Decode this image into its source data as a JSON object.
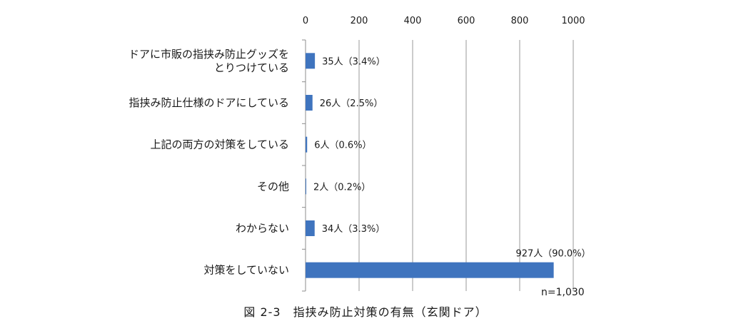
{
  "chart_data": {
    "type": "bar",
    "orientation": "horizontal",
    "categories": [
      [
        "ドアに市販の指挟み防止グッズを",
        "とりつけている"
      ],
      [
        "指挟み防止仕様のドアにしている"
      ],
      [
        "上記の両方の対策をしている"
      ],
      [
        "その他"
      ],
      [
        "わからない"
      ],
      [
        "対策をしていない"
      ]
    ],
    "values": [
      35,
      26,
      6,
      2,
      34,
      927
    ],
    "data_labels": [
      "35人（3.4%）",
      "26人（2.5%）",
      "6人（0.6%）",
      "2人（0.2%）",
      "34人（3.3%）",
      "927人（90.0%）"
    ],
    "xlim": [
      0,
      1000
    ],
    "xticks": [
      0,
      200,
      400,
      600,
      800,
      1000
    ],
    "x_axis_position": "top",
    "grid": true,
    "bar_color": "#3f74be",
    "note": "n=1,030"
  },
  "caption": "図 2-3　指挟み防止対策の有無（玄関ドア）"
}
